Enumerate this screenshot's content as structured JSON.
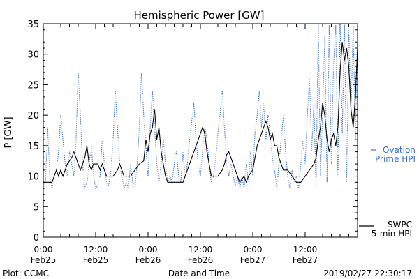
{
  "chart_data": {
    "type": "line",
    "title": "Hemispheric Power [GW]",
    "xlabel": "Date and Time",
    "ylabel": "P [GW]",
    "ylim": [
      0,
      35
    ],
    "xlim": [
      0,
      72
    ],
    "y_ticks": [
      "0",
      "5",
      "10",
      "15",
      "20",
      "25",
      "30",
      "35"
    ],
    "x_ticks": [
      {
        "x": 0,
        "time": "0:00",
        "date": "Feb25"
      },
      {
        "x": 12,
        "time": "12:00",
        "date": "Feb25"
      },
      {
        "x": 24,
        "time": "0:00",
        "date": "Feb26"
      },
      {
        "x": 36,
        "time": "12:00",
        "date": "Feb26"
      },
      {
        "x": 48,
        "time": "0:00",
        "date": "Feb27"
      },
      {
        "x": 60,
        "time": "12:00",
        "date": "Feb27"
      }
    ],
    "grid": false,
    "series": [
      {
        "name": "SWPC 5-min HPI",
        "name_line1": "SWPC",
        "name_line2": "5-min HPI",
        "color": "#000000",
        "style": "solid",
        "points": [
          [
            0,
            9
          ],
          [
            2,
            9
          ],
          [
            2.5,
            10
          ],
          [
            3,
            11
          ],
          [
            3.5,
            10
          ],
          [
            4,
            11
          ],
          [
            4.5,
            10
          ],
          [
            5,
            11
          ],
          [
            5.5,
            12
          ],
          [
            6,
            12.5
          ],
          [
            6.5,
            13
          ],
          [
            7,
            14
          ],
          [
            7.5,
            13
          ],
          [
            8,
            12
          ],
          [
            8.5,
            11
          ],
          [
            9,
            12
          ],
          [
            9.5,
            13
          ],
          [
            10,
            15
          ],
          [
            10.5,
            12
          ],
          [
            11,
            11
          ],
          [
            11.5,
            12
          ],
          [
            12.5,
            12
          ],
          [
            13,
            11
          ],
          [
            13.5,
            12
          ],
          [
            14,
            11
          ],
          [
            14.5,
            10
          ],
          [
            15,
            10
          ],
          [
            16,
            10
          ],
          [
            17,
            11
          ],
          [
            17.5,
            12
          ],
          [
            18,
            11
          ],
          [
            18.5,
            10
          ],
          [
            20,
            10
          ],
          [
            22,
            12
          ],
          [
            23,
            12.5
          ],
          [
            23.5,
            16
          ],
          [
            24,
            14
          ],
          [
            24.5,
            17
          ],
          [
            25,
            18
          ],
          [
            25.5,
            21
          ],
          [
            26,
            16
          ],
          [
            26.5,
            18
          ],
          [
            27,
            14
          ],
          [
            27.5,
            12
          ],
          [
            28,
            10
          ],
          [
            28.5,
            9
          ],
          [
            30,
            9
          ],
          [
            32,
            9
          ],
          [
            33,
            11
          ],
          [
            34,
            13
          ],
          [
            35,
            15
          ],
          [
            36,
            17
          ],
          [
            36.5,
            18
          ],
          [
            37,
            17
          ],
          [
            37.5,
            14
          ],
          [
            38,
            12
          ],
          [
            38.5,
            10
          ],
          [
            40,
            10
          ],
          [
            41,
            11
          ],
          [
            41.5,
            12
          ],
          [
            42,
            13.5
          ],
          [
            42.5,
            14
          ],
          [
            43,
            13
          ],
          [
            44,
            11
          ],
          [
            44.5,
            10
          ],
          [
            45,
            9
          ],
          [
            46,
            10
          ],
          [
            46.5,
            9
          ],
          [
            47,
            10
          ],
          [
            48,
            11
          ],
          [
            48.5,
            13
          ],
          [
            49,
            15
          ],
          [
            49.5,
            16
          ],
          [
            50,
            17
          ],
          [
            50.5,
            18
          ],
          [
            51,
            19
          ],
          [
            51.5,
            18
          ],
          [
            52,
            16
          ],
          [
            52.5,
            17
          ],
          [
            53,
            15
          ],
          [
            53.5,
            15
          ],
          [
            54,
            13
          ],
          [
            54.5,
            12
          ],
          [
            55,
            11
          ],
          [
            56,
            11
          ],
          [
            57,
            10
          ],
          [
            58,
            9
          ],
          [
            59,
            9
          ],
          [
            60,
            10
          ],
          [
            61,
            11
          ],
          [
            62,
            12
          ],
          [
            62.5,
            13
          ],
          [
            63,
            16
          ],
          [
            63.5,
            18
          ],
          [
            64,
            22
          ],
          [
            64.5,
            20
          ],
          [
            65,
            16
          ],
          [
            65.5,
            14
          ],
          [
            66,
            16
          ],
          [
            66.5,
            17
          ],
          [
            67,
            15
          ],
          [
            67.5,
            18
          ],
          [
            68,
            27
          ],
          [
            68.5,
            32
          ],
          [
            69,
            29
          ],
          [
            69.5,
            31
          ],
          [
            70,
            28
          ],
          [
            70.5,
            21
          ],
          [
            71,
            18
          ],
          [
            71.5,
            23
          ],
          [
            72,
            31
          ]
        ]
      },
      {
        "name": "Ovation Prime HPI",
        "name_line1": "Ovation",
        "name_line2": "Prime HPI",
        "color": "#3a6fcf",
        "style": "dotted",
        "points": [
          [
            0,
            8
          ],
          [
            0.5,
            9
          ],
          [
            1,
            18
          ],
          [
            1.5,
            10
          ],
          [
            2,
            8
          ],
          [
            2.5,
            10
          ],
          [
            3,
            11
          ],
          [
            3.5,
            14
          ],
          [
            4,
            20
          ],
          [
            4.5,
            16
          ],
          [
            5,
            12
          ],
          [
            5.5,
            10
          ],
          [
            6,
            14
          ],
          [
            6.5,
            12
          ],
          [
            7,
            10
          ],
          [
            7.5,
            16
          ],
          [
            8,
            27
          ],
          [
            8.5,
            20
          ],
          [
            9,
            12
          ],
          [
            9.5,
            8
          ],
          [
            10,
            9
          ],
          [
            10.5,
            12
          ],
          [
            11,
            15
          ],
          [
            11.5,
            10
          ],
          [
            12,
            8
          ],
          [
            12.5,
            8.5
          ],
          [
            13,
            10
          ],
          [
            13.5,
            16
          ],
          [
            14,
            12
          ],
          [
            14.5,
            9
          ],
          [
            15,
            8.5
          ],
          [
            15.5,
            11
          ],
          [
            16,
            16
          ],
          [
            16.5,
            24
          ],
          [
            17,
            18
          ],
          [
            17.5,
            12
          ],
          [
            18,
            10
          ],
          [
            18.5,
            8
          ],
          [
            19,
            9
          ],
          [
            19.5,
            8
          ],
          [
            20,
            12
          ],
          [
            20.5,
            9
          ],
          [
            21,
            8
          ],
          [
            21.5,
            12
          ],
          [
            22,
            18
          ],
          [
            22.5,
            27
          ],
          [
            23,
            20
          ],
          [
            23.5,
            15
          ],
          [
            24,
            10
          ],
          [
            24.5,
            18
          ],
          [
            25,
            24
          ],
          [
            25.5,
            18
          ],
          [
            26,
            12
          ],
          [
            26.5,
            9
          ],
          [
            27,
            12
          ],
          [
            27.5,
            16
          ],
          [
            28,
            12
          ],
          [
            28.5,
            9
          ],
          [
            29,
            10
          ],
          [
            29.5,
            9
          ],
          [
            30,
            12
          ],
          [
            30.5,
            14
          ],
          [
            31,
            10
          ],
          [
            31.5,
            9
          ],
          [
            32,
            14
          ],
          [
            32.5,
            10
          ],
          [
            33,
            12
          ],
          [
            33.5,
            16
          ],
          [
            34,
            19
          ],
          [
            34.5,
            22
          ],
          [
            35,
            16
          ],
          [
            35.5,
            12
          ],
          [
            36,
            10
          ],
          [
            36.5,
            14
          ],
          [
            37,
            18
          ],
          [
            37.5,
            16
          ],
          [
            38,
            12
          ],
          [
            38.5,
            9
          ],
          [
            39,
            10
          ],
          [
            39.5,
            13
          ],
          [
            40,
            17
          ],
          [
            40.5,
            20
          ],
          [
            41,
            24
          ],
          [
            41.5,
            18
          ],
          [
            42,
            12
          ],
          [
            42.5,
            10
          ],
          [
            43,
            12
          ],
          [
            43.5,
            10
          ],
          [
            44,
            8.5
          ],
          [
            44.5,
            10
          ],
          [
            45,
            8
          ],
          [
            45.5,
            10
          ],
          [
            46,
            8
          ],
          [
            46.5,
            12
          ],
          [
            47,
            9
          ],
          [
            47.5,
            14
          ],
          [
            48,
            10
          ],
          [
            48.5,
            17
          ],
          [
            49,
            20
          ],
          [
            49.5,
            24
          ],
          [
            50,
            18
          ],
          [
            50.5,
            22
          ],
          [
            51,
            16
          ],
          [
            51.5,
            20
          ],
          [
            52,
            17
          ],
          [
            52.5,
            13
          ],
          [
            53,
            11
          ],
          [
            53.5,
            8
          ],
          [
            54,
            12
          ],
          [
            54.5,
            16
          ],
          [
            55,
            20
          ],
          [
            55.5,
            14
          ],
          [
            56,
            10
          ],
          [
            56.5,
            8
          ],
          [
            57,
            11
          ],
          [
            57.5,
            9
          ],
          [
            58,
            10
          ],
          [
            58.5,
            8
          ],
          [
            59,
            12
          ],
          [
            59.5,
            16
          ],
          [
            60,
            12
          ],
          [
            60.5,
            20
          ],
          [
            61,
            26
          ],
          [
            61.5,
            14
          ],
          [
            62,
            22
          ],
          [
            62.5,
            8
          ],
          [
            63,
            35
          ],
          [
            63.5,
            10
          ],
          [
            64,
            20
          ],
          [
            64.5,
            33
          ],
          [
            65,
            9
          ],
          [
            65.5,
            35
          ],
          [
            66,
            12
          ],
          [
            66.5,
            28
          ],
          [
            67,
            35
          ],
          [
            67.5,
            10
          ],
          [
            68,
            35
          ],
          [
            68.5,
            17
          ],
          [
            69,
            35
          ],
          [
            69.5,
            9
          ],
          [
            70,
            34
          ],
          [
            70.5,
            20
          ],
          [
            71,
            35
          ],
          [
            71.5,
            16
          ],
          [
            72,
            35
          ]
        ]
      }
    ],
    "legend_placement": "right",
    "annotations": {
      "plot_source": "Plot: CCMC",
      "timestamp": "2019/02/27 22:30:17"
    }
  }
}
